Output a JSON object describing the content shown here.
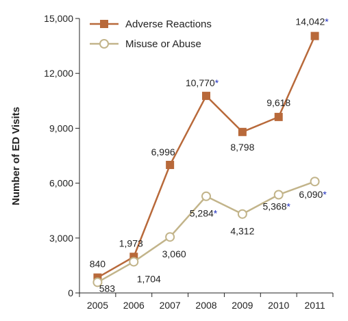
{
  "chart_data": {
    "type": "line",
    "x": [
      "2005",
      "2006",
      "2007",
      "2008",
      "2009",
      "2010",
      "2011"
    ],
    "ylabel": "Number of ED Visits",
    "ylim": [
      0,
      15000
    ],
    "yticks": [
      0,
      3000,
      6000,
      9000,
      12000,
      15000
    ],
    "ytick_labels": [
      "0",
      "3,000",
      "6,000",
      "9,000",
      "12,000",
      "15,000"
    ],
    "grid": false,
    "legend_position": "top-left",
    "asterisk_color": "#1f2fbf",
    "series": [
      {
        "name": "Adverse Reactions",
        "color": "#b8693a",
        "marker": "square-filled",
        "values": [
          840,
          1973,
          6996,
          10770,
          8798,
          9618,
          14042
        ],
        "labels": [
          "840",
          "1,973",
          "6,996",
          "10,770",
          "8,798",
          "9,618",
          "14,042"
        ],
        "asterisk": [
          false,
          false,
          false,
          true,
          false,
          false,
          true
        ]
      },
      {
        "name": "Misuse or Abuse",
        "color": "#c2b48a",
        "marker": "circle-open",
        "values": [
          583,
          1704,
          3060,
          5284,
          4312,
          5368,
          6090
        ],
        "labels": [
          "583",
          "1,704",
          "3,060",
          "5,284",
          "4,312",
          "5,368",
          "6,090"
        ],
        "asterisk": [
          false,
          false,
          false,
          true,
          false,
          true,
          true
        ]
      }
    ]
  }
}
